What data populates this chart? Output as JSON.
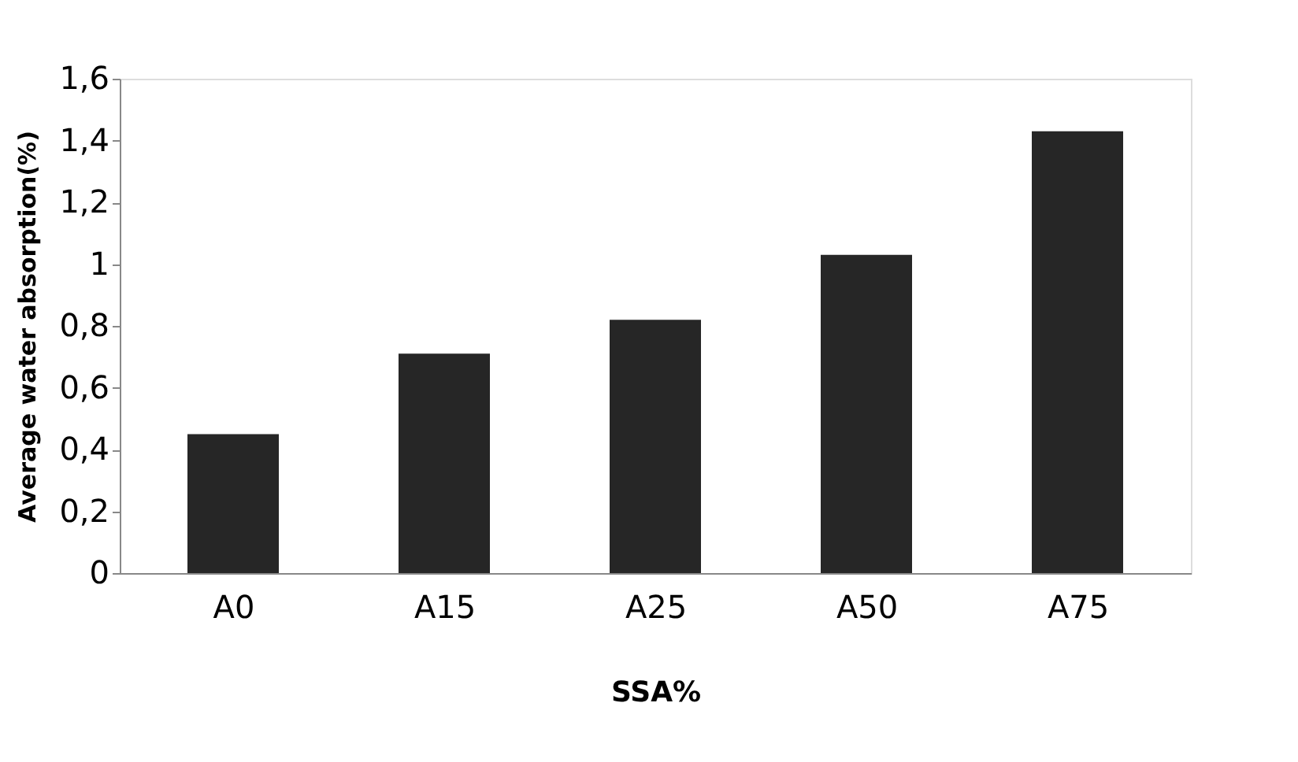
{
  "chart_data": {
    "type": "bar",
    "xlabel": "SSA%",
    "ylabel": "Average water absorption(%)",
    "categories": [
      "A0",
      "A15",
      "A25",
      "A50",
      "A75"
    ],
    "values": [
      0.45,
      0.71,
      0.82,
      1.03,
      1.43
    ],
    "color": "#262626",
    "ylim": [
      0,
      1.6
    ],
    "yticks": [
      0,
      {
        "value": 0.2,
        "label": "0,2"
      },
      {
        "value": 0.4,
        "label": "0,4"
      },
      {
        "value": 0.6,
        "label": "0,6"
      },
      {
        "value": 0.8,
        "label": "0,8"
      },
      1,
      {
        "value": 1.2,
        "label": "1,2"
      },
      {
        "value": 1.4,
        "label": "1,4"
      },
      {
        "value": 1.6,
        "label": "1,6"
      }
    ],
    "grid": false
  }
}
